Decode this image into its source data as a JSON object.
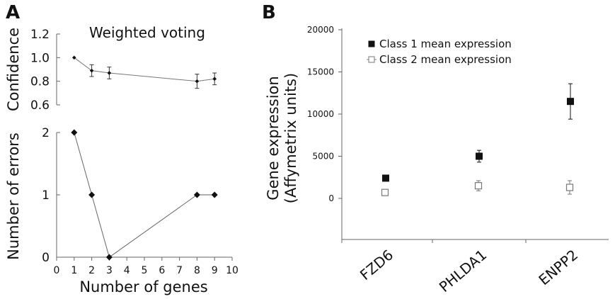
{
  "panels": {
    "a": {
      "label": "A"
    },
    "b": {
      "label": "B"
    }
  },
  "chart_data": [
    {
      "type": "line",
      "panel": "A",
      "title": "Weighted voting",
      "ylabel": "Confidence",
      "x": [
        1,
        2,
        3,
        8,
        9
      ],
      "values": [
        1.0,
        0.89,
        0.87,
        0.8,
        0.82
      ],
      "errors": [
        0.0,
        0.05,
        0.05,
        0.06,
        0.05
      ],
      "ylim": [
        0.6,
        1.2
      ],
      "yticks": [
        "0.6",
        "0.8",
        "1.0",
        "1.2"
      ],
      "grid": false
    },
    {
      "type": "line",
      "panel": "A",
      "xlabel": "Number of genes",
      "ylabel": "Number of errors",
      "x": [
        1,
        2,
        3,
        8,
        9
      ],
      "values": [
        2,
        1,
        0,
        1,
        1
      ],
      "xlim": [
        0,
        10
      ],
      "ylim": [
        0,
        2
      ],
      "xticks": [
        "0",
        "1",
        "2",
        "3",
        "4",
        "5",
        "6",
        "7",
        "8",
        "9",
        "10"
      ],
      "yticks": [
        "0",
        "1",
        "2"
      ],
      "grid": false
    },
    {
      "type": "scatter",
      "panel": "B",
      "ylabel_line1": "Gene expression",
      "ylabel_line2": "(Affymetrix units)",
      "categories": [
        "FZD6",
        "PHLDA1",
        "ENPP2"
      ],
      "series": [
        {
          "name": "Class 1 mean expression",
          "marker": "filled-square",
          "color": "#111111",
          "values": [
            2400,
            5000,
            11500
          ],
          "errors": [
            0,
            700,
            2100
          ]
        },
        {
          "name": "Class 2 mean expression",
          "marker": "open-square",
          "color": "#777777",
          "values": [
            700,
            1500,
            1300
          ],
          "errors": [
            0,
            600,
            800
          ]
        }
      ],
      "ylim": [
        -5000,
        20000
      ],
      "yticks": [
        "0",
        "5000",
        "10000",
        "15000",
        "20000"
      ],
      "legend": "top-left",
      "grid": false
    }
  ]
}
